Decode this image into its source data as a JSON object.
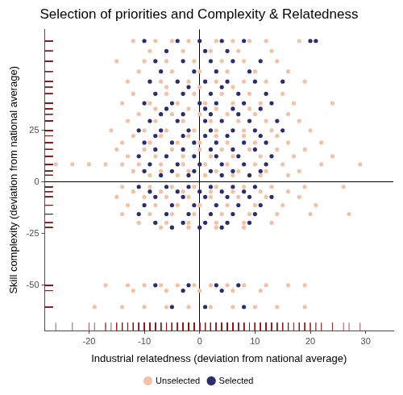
{
  "chart_data": {
    "type": "scatter",
    "title": "Selection of priorities and Complexity & Relatedness",
    "x_label": "Industrial relatedness (deviation from national average)",
    "y_label": "Skill complexity (deviation from national average)",
    "xlim": [
      -28,
      35
    ],
    "xticks": [
      -20,
      -10,
      0,
      10,
      20,
      30
    ],
    "ylim": [
      -72,
      74
    ],
    "yticks": [
      -50,
      -25,
      0,
      25
    ],
    "grid": false,
    "legend": "bottom",
    "marker": "circle",
    "series": [
      {
        "name": "Unselected",
        "color": "#f2c1a6",
        "x": [
          -12,
          -8,
          -5,
          -2,
          3,
          6,
          9,
          12,
          18,
          -9,
          -3,
          2,
          7,
          13,
          -15,
          -10,
          -6,
          -1,
          4,
          8,
          14,
          -11,
          -5,
          0,
          5,
          10,
          16,
          -13,
          -7,
          -2,
          3,
          8,
          12,
          19,
          -6,
          0,
          6,
          -12,
          -6,
          -1,
          4,
          9,
          15,
          -14,
          -9,
          -4,
          1,
          6,
          11,
          17,
          24,
          -8,
          -2,
          3,
          9,
          -11,
          -5,
          0,
          5,
          10,
          16,
          -13,
          -8,
          -3,
          2,
          7,
          12,
          18,
          -16,
          -10,
          -6,
          -1,
          3,
          8,
          13,
          20,
          -12,
          -7,
          -2,
          3,
          8,
          14,
          -14,
          -9,
          -4,
          0,
          5,
          10,
          16,
          22,
          -15,
          -10,
          -5,
          0,
          4,
          9,
          14,
          19,
          -13,
          -8,
          -3,
          2,
          6,
          11,
          17,
          24,
          -26,
          -23,
          -20,
          -17,
          -14,
          -11,
          -7,
          -3,
          1,
          5,
          10,
          15,
          22,
          29,
          -12,
          -7,
          -2,
          3,
          7,
          12,
          18,
          -9,
          -4,
          1,
          6,
          11,
          16,
          -14,
          -9,
          -5,
          -1,
          3,
          8,
          13,
          19,
          26,
          -12,
          -7,
          -3,
          2,
          6,
          11,
          16,
          -15,
          -10,
          -6,
          -2,
          2,
          7,
          12,
          18,
          -13,
          -8,
          -4,
          0,
          5,
          10,
          15,
          21,
          -14,
          -9,
          -5,
          -1,
          4,
          9,
          14,
          20,
          27,
          -11,
          -6,
          -2,
          3,
          8,
          13,
          -7,
          -2,
          3,
          8,
          -17,
          -13,
          -10,
          -7,
          -4,
          -1,
          2,
          5,
          8,
          12,
          16,
          19,
          -12,
          -6,
          0,
          6,
          11,
          -19,
          -14,
          -10,
          -6,
          -2,
          2,
          6,
          10,
          14,
          19
        ],
        "values": [
          68.4,
          68.4,
          68.4,
          68.4,
          68.4,
          68.4,
          68.4,
          68.4,
          68.4,
          63.5,
          63.5,
          63.5,
          63.5,
          63.5,
          58.6,
          58.6,
          58.6,
          58.6,
          58.6,
          58.6,
          58.6,
          53.6,
          53.6,
          53.6,
          53.6,
          53.6,
          53.6,
          48.7,
          48.7,
          48.7,
          48.7,
          48.7,
          48.7,
          48.7,
          46,
          46,
          46,
          42.8,
          42.8,
          42.8,
          42.8,
          42.8,
          42.8,
          38.2,
          38.2,
          38.2,
          38.2,
          38.2,
          38.2,
          38.2,
          38.2,
          35.5,
          35.5,
          35.5,
          35.5,
          32.9,
          32.9,
          32.9,
          32.9,
          32.9,
          32.9,
          29.6,
          29.6,
          29.6,
          29.6,
          29.6,
          29.6,
          29.6,
          25,
          25,
          25,
          25,
          25,
          25,
          25,
          25,
          22.4,
          22.4,
          22.4,
          22.4,
          22.4,
          22.4,
          19.1,
          19.1,
          19.1,
          19.1,
          19.1,
          19.1,
          19.1,
          19.1,
          15.8,
          15.8,
          15.8,
          15.8,
          15.8,
          15.8,
          15.8,
          15.8,
          12.5,
          12.5,
          12.5,
          12.5,
          12.5,
          12.5,
          12.5,
          12.5,
          8.6,
          8.6,
          8.6,
          8.6,
          8.6,
          8.6,
          8.6,
          8.6,
          8.6,
          8.6,
          8.6,
          8.6,
          8.6,
          8.6,
          5.3,
          5.3,
          5.3,
          5.3,
          5.3,
          5.3,
          5.3,
          3.3,
          3.3,
          3.3,
          3.3,
          3.3,
          3.3,
          -2.3,
          -2.3,
          -2.3,
          -2.3,
          -2.3,
          -2.3,
          -2.3,
          -2.3,
          -2.3,
          -4.6,
          -4.6,
          -4.6,
          -4.6,
          -4.6,
          -4.6,
          -4.6,
          -7.2,
          -7.2,
          -7.2,
          -7.2,
          -7.2,
          -7.2,
          -7.2,
          -7.2,
          -11.2,
          -11.2,
          -11.2,
          -11.2,
          -11.2,
          -11.2,
          -11.2,
          -11.2,
          -15.5,
          -15.5,
          -15.5,
          -15.5,
          -15.5,
          -15.5,
          -15.5,
          -15.5,
          -15.5,
          -19.7,
          -19.7,
          -19.7,
          -19.7,
          -19.7,
          -19.7,
          -22,
          -22,
          -22,
          -22,
          -50,
          -50,
          -50,
          -50,
          -50,
          -50,
          -50,
          -50,
          -50,
          -50,
          -50,
          -50,
          -52.6,
          -52.6,
          -52.6,
          -52.6,
          -52.6,
          -60.5,
          -60.5,
          -60.5,
          -60.5,
          -60.5,
          -60.5,
          -60.5,
          -60.5,
          -60.5,
          -60.5
        ]
      },
      {
        "name": "Selected",
        "color": "#2c2d6c",
        "x": [
          -10,
          -4,
          0,
          4,
          8,
          20,
          21,
          -6,
          1,
          5,
          -8,
          -3,
          2,
          6,
          11,
          -7,
          -1,
          3,
          9,
          -9,
          -4,
          1,
          5,
          10,
          15,
          -2,
          4,
          -8,
          -3,
          2,
          7,
          12,
          -10,
          -5,
          0,
          3,
          8,
          13,
          -6,
          1,
          6,
          11,
          -7,
          -3,
          2,
          7,
          -9,
          -4,
          1,
          4,
          9,
          14,
          -11,
          -7,
          -2,
          2,
          6,
          10,
          15,
          -8,
          -3,
          1,
          5,
          11,
          -10,
          -5,
          -1,
          3,
          8,
          12,
          -8,
          -3,
          2,
          6,
          10,
          -11,
          -6,
          -1,
          3,
          7,
          13,
          -9,
          -4,
          0,
          4,
          8,
          12,
          -10,
          -5,
          -1,
          2,
          6,
          11,
          -7,
          -2,
          4,
          9,
          -11,
          -6,
          -2,
          2,
          6,
          10,
          -9,
          -4,
          0,
          4,
          8,
          -8,
          -3,
          1,
          5,
          9,
          13,
          -10,
          -5,
          -1,
          3,
          7,
          11,
          -11,
          -6,
          -2,
          2,
          6,
          10,
          -8,
          -3,
          1,
          5,
          9,
          -5,
          0,
          4,
          -8,
          -2,
          3,
          7,
          -3,
          4,
          -5,
          1,
          8
        ],
        "values": [
          68.4,
          68.4,
          68.4,
          68.4,
          68.4,
          68.4,
          68.4,
          63.5,
          63.5,
          63.5,
          58.6,
          58.6,
          58.6,
          58.6,
          58.6,
          53.6,
          53.6,
          53.6,
          53.6,
          48.7,
          48.7,
          48.7,
          48.7,
          48.7,
          48.7,
          46,
          46,
          42.8,
          42.8,
          42.8,
          42.8,
          42.8,
          38.2,
          38.2,
          38.2,
          38.2,
          38.2,
          38.2,
          35.5,
          35.5,
          35.5,
          35.5,
          32.9,
          32.9,
          32.9,
          32.9,
          29.6,
          29.6,
          29.6,
          29.6,
          29.6,
          29.6,
          25,
          25,
          25,
          25,
          25,
          25,
          25,
          22.4,
          22.4,
          22.4,
          22.4,
          22.4,
          19.1,
          19.1,
          19.1,
          19.1,
          19.1,
          19.1,
          15.8,
          15.8,
          15.8,
          15.8,
          15.8,
          12.5,
          12.5,
          12.5,
          12.5,
          12.5,
          12.5,
          8.6,
          8.6,
          8.6,
          8.6,
          8.6,
          8.6,
          5.3,
          5.3,
          5.3,
          5.3,
          5.3,
          5.3,
          3.3,
          3.3,
          3.3,
          3.3,
          -2.3,
          -2.3,
          -2.3,
          -2.3,
          -2.3,
          -2.3,
          -4.6,
          -4.6,
          -4.6,
          -4.6,
          -4.6,
          -7.2,
          -7.2,
          -7.2,
          -7.2,
          -7.2,
          -7.2,
          -11.2,
          -11.2,
          -11.2,
          -11.2,
          -11.2,
          -11.2,
          -15.5,
          -15.5,
          -15.5,
          -15.5,
          -15.5,
          -15.5,
          -19.7,
          -19.7,
          -19.7,
          -19.7,
          -19.7,
          -22,
          -22,
          -22,
          -50,
          -50,
          -50,
          -50,
          -52.6,
          -52.6,
          -60.5,
          -60.5,
          -60.5
        ]
      }
    ]
  }
}
